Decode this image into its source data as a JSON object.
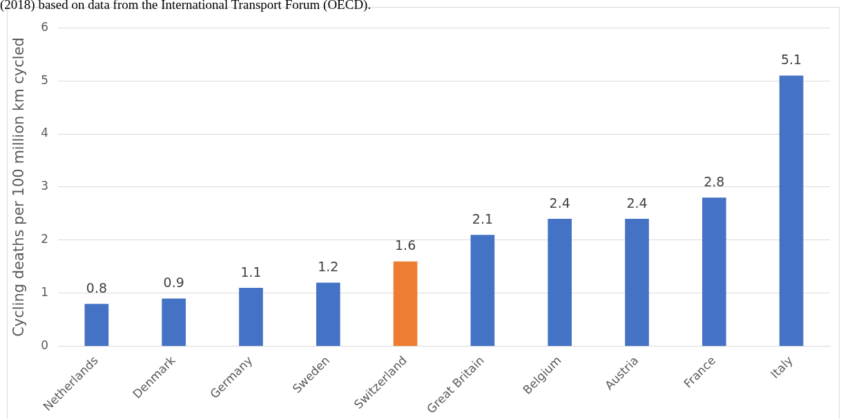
{
  "chart_data": {
    "type": "bar",
    "ylabel": "Cycling deaths per 100 million km cycled",
    "annotations": [
      "(2018) based on data from the International Transport Forum (OECD)."
    ],
    "categories": [
      "Netherlands",
      "Denmark",
      "Germany",
      "Sweden",
      "Switzerland",
      "Great Britain",
      "Belgium",
      "Austria",
      "France",
      "Italy"
    ],
    "values": [
      0.8,
      0.9,
      1.1,
      1.2,
      1.6,
      2.1,
      2.4,
      2.4,
      2.8,
      5.1
    ],
    "colors": [
      "#4472c4",
      "#4472c4",
      "#4472c4",
      "#4472c4",
      "#ed7d31",
      "#4472c4",
      "#4472c4",
      "#4472c4",
      "#4472c4",
      "#4472c4"
    ],
    "ylim": [
      0,
      6
    ],
    "yticks": [
      0,
      1,
      2,
      3,
      4,
      5,
      6
    ],
    "grid": "y",
    "data_labels": true,
    "legend": false
  }
}
